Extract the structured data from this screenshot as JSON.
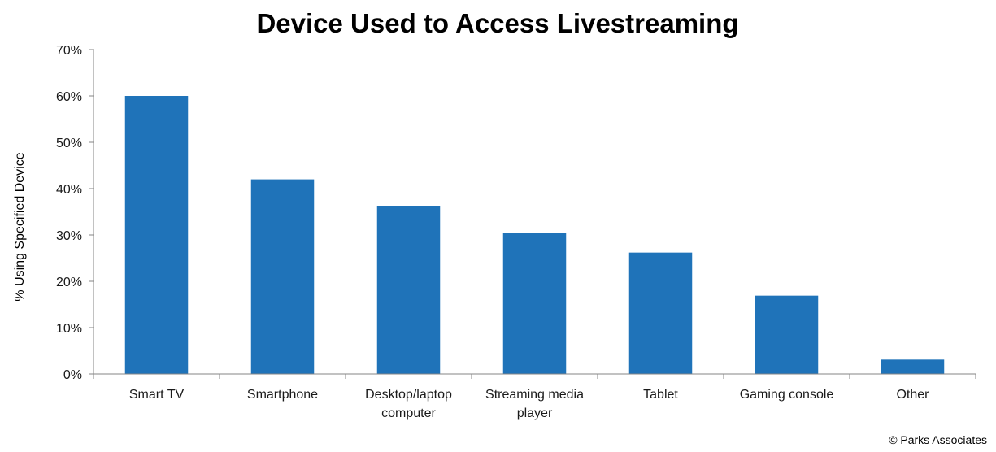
{
  "chart_data": {
    "type": "bar",
    "title": "Device Used to Access Livestreaming",
    "ylabel": "% Using Specified Device",
    "xlabel": "",
    "categories": [
      "Smart TV",
      "Smartphone",
      "Desktop/laptop computer",
      "Streaming media player",
      "Tablet",
      "Gaming console",
      "Other"
    ],
    "category_lines": [
      [
        "Smart TV"
      ],
      [
        "Smartphone"
      ],
      [
        "Desktop/laptop",
        "computer"
      ],
      [
        "Streaming media",
        "player"
      ],
      [
        "Tablet"
      ],
      [
        "Gaming console"
      ],
      [
        "Other"
      ]
    ],
    "values": [
      60,
      42,
      36.2,
      30.4,
      26.2,
      16.9,
      3.1
    ],
    "ylim": [
      0,
      70
    ],
    "yticks": [
      0,
      10,
      20,
      30,
      40,
      50,
      60,
      70
    ],
    "ytick_labels": [
      "0%",
      "10%",
      "20%",
      "30%",
      "40%",
      "50%",
      "60%",
      "70%"
    ],
    "bar_color": "#1f73b9",
    "grid": false,
    "legend": "none"
  },
  "credit": "© Parks Associates"
}
